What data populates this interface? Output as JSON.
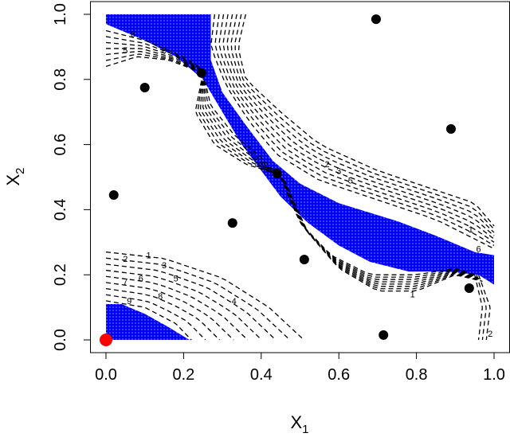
{
  "chart_data": {
    "type": "scatter",
    "title": "",
    "xlabel": "X",
    "xlabel_sub": "1",
    "ylabel": "X",
    "ylabel_sub": "2",
    "xlim": [
      -0.04,
      1.04
    ],
    "ylim": [
      -0.04,
      1.04
    ],
    "xticks": [
      "0.0",
      "0.2",
      "0.4",
      "0.6",
      "0.8",
      "1.0"
    ],
    "yticks": [
      "0.0",
      "0.2",
      "0.4",
      "0.6",
      "0.8",
      "1.0"
    ],
    "colors": {
      "region": "#0000ff",
      "points": "#000000",
      "highlight": "#ff0000"
    },
    "points": [
      [
        0.696,
        0.985
      ],
      [
        0.246,
        0.82
      ],
      [
        0.1,
        0.775
      ],
      [
        0.889,
        0.648
      ],
      [
        0.441,
        0.511
      ],
      [
        0.02,
        0.445
      ],
      [
        0.326,
        0.359
      ],
      [
        0.511,
        0.247
      ],
      [
        0.936,
        0.159
      ],
      [
        0.715,
        0.015
      ]
    ],
    "highlight_point": [
      0.0,
      0.0
    ],
    "regions": [
      [
        [
          0,
          1
        ],
        [
          0.27,
          1
        ],
        [
          0.27,
          0.86
        ],
        [
          0.3,
          0.76
        ],
        [
          0.36,
          0.66
        ],
        [
          0.43,
          0.55
        ],
        [
          0.5,
          0.48
        ],
        [
          0.6,
          0.42
        ],
        [
          0.75,
          0.365
        ],
        [
          0.85,
          0.32
        ],
        [
          0.95,
          0.27
        ],
        [
          1.0,
          0.26
        ],
        [
          1.0,
          0.17
        ],
        [
          0.96,
          0.2
        ],
        [
          0.88,
          0.21
        ],
        [
          0.78,
          0.21
        ],
        [
          0.68,
          0.24
        ],
        [
          0.6,
          0.29
        ],
        [
          0.52,
          0.36
        ],
        [
          0.45,
          0.44
        ],
        [
          0.4,
          0.52
        ],
        [
          0.35,
          0.6
        ],
        [
          0.3,
          0.7
        ],
        [
          0.25,
          0.8
        ],
        [
          0.18,
          0.87
        ],
        [
          0.1,
          0.92
        ],
        [
          0.0,
          0.97
        ]
      ],
      [
        [
          0,
          0
        ],
        [
          0,
          0.11
        ],
        [
          0.04,
          0.11
        ],
        [
          0.1,
          0.08
        ],
        [
          0.16,
          0.04
        ],
        [
          0.215,
          0
        ]
      ]
    ],
    "contour_families": [
      {
        "count": 9,
        "a": [
          [
            0,
            0.27
          ],
          [
            0.15,
            0.25
          ],
          [
            0.3,
            0.19
          ],
          [
            0.42,
            0.1
          ],
          [
            0.51,
            0
          ]
        ],
        "b": [
          [
            0,
            0.12
          ],
          [
            0.1,
            0.1
          ],
          [
            0.18,
            0.05
          ],
          [
            0.22,
            0
          ]
        ]
      },
      {
        "count": 7,
        "a": [
          [
            0,
            0.95
          ],
          [
            0.1,
            0.92
          ],
          [
            0.2,
            0.87
          ],
          [
            0.25,
            0.83
          ]
        ],
        "b": [
          [
            0,
            0.84
          ],
          [
            0.08,
            0.87
          ],
          [
            0.16,
            0.86
          ],
          [
            0.25,
            0.82
          ]
        ]
      },
      {
        "count": 8,
        "a": [
          [
            0.36,
            1.0
          ],
          [
            0.34,
            0.9
          ],
          [
            0.36,
            0.8
          ],
          [
            0.45,
            0.7
          ],
          [
            0.55,
            0.6
          ],
          [
            0.7,
            0.52
          ],
          [
            0.85,
            0.46
          ],
          [
            0.95,
            0.42
          ],
          [
            1.0,
            0.35
          ]
        ],
        "b": [
          [
            0.28,
            1.0
          ],
          [
            0.27,
            0.9
          ],
          [
            0.31,
            0.78
          ],
          [
            0.37,
            0.67
          ],
          [
            0.44,
            0.57
          ],
          [
            0.55,
            0.49
          ],
          [
            0.7,
            0.43
          ],
          [
            0.85,
            0.37
          ],
          [
            0.95,
            0.31
          ],
          [
            1.0,
            0.28
          ]
        ]
      },
      {
        "count": 7,
        "a": [
          [
            0.25,
            0.82
          ],
          [
            0.23,
            0.7
          ],
          [
            0.28,
            0.6
          ],
          [
            0.36,
            0.54
          ],
          [
            0.44,
            0.51
          ]
        ],
        "b": [
          [
            0.25,
            0.82
          ],
          [
            0.27,
            0.72
          ],
          [
            0.33,
            0.63
          ],
          [
            0.4,
            0.56
          ],
          [
            0.44,
            0.51
          ]
        ]
      },
      {
        "count": 8,
        "a": [
          [
            0.45,
            0.5
          ],
          [
            0.5,
            0.36
          ],
          [
            0.58,
            0.26
          ],
          [
            0.68,
            0.2
          ],
          [
            0.8,
            0.2
          ],
          [
            0.9,
            0.22
          ],
          [
            0.95,
            0.2
          ]
        ],
        "b": [
          [
            0.46,
            0.49
          ],
          [
            0.52,
            0.33
          ],
          [
            0.6,
            0.22
          ],
          [
            0.7,
            0.15
          ],
          [
            0.8,
            0.15
          ],
          [
            0.9,
            0.2
          ],
          [
            0.97,
            0.18
          ]
        ]
      },
      {
        "count": 3,
        "a": [
          [
            0.96,
            0.2
          ],
          [
            0.99,
            0.1
          ],
          [
            0.98,
            0.0
          ]
        ],
        "b": [
          [
            0.95,
            0.2
          ],
          [
            0.97,
            0.1
          ],
          [
            0.96,
            0.0
          ]
        ]
      }
    ],
    "contour_labels": [
      {
        "text": "1",
        "x": 0.11,
        "y": 0.26
      },
      {
        "text": "2",
        "x": 0.05,
        "y": 0.25
      },
      {
        "text": "3",
        "x": 0.15,
        "y": 0.23
      },
      {
        "text": "7",
        "x": 0.05,
        "y": 0.18
      },
      {
        "text": "6",
        "x": 0.09,
        "y": 0.19
      },
      {
        "text": "5",
        "x": 0.18,
        "y": 0.19
      },
      {
        "text": "9",
        "x": 0.06,
        "y": 0.12
      },
      {
        "text": "8",
        "x": 0.14,
        "y": 0.135
      },
      {
        "text": "4",
        "x": 0.33,
        "y": 0.12
      },
      {
        "text": "8",
        "x": 0.07,
        "y": 0.94
      },
      {
        "text": "5",
        "x": 0.05,
        "y": 0.89
      },
      {
        "text": "6",
        "x": 0.15,
        "y": 0.89
      },
      {
        "text": "2",
        "x": 0.57,
        "y": 0.54
      },
      {
        "text": "3",
        "x": 0.6,
        "y": 0.52
      },
      {
        "text": "5",
        "x": 0.63,
        "y": 0.49
      },
      {
        "text": "1",
        "x": 0.94,
        "y": 0.34
      },
      {
        "text": "6",
        "x": 0.96,
        "y": 0.28
      },
      {
        "text": "1",
        "x": 0.79,
        "y": 0.14
      },
      {
        "text": "2",
        "x": 0.99,
        "y": 0.02
      }
    ]
  }
}
